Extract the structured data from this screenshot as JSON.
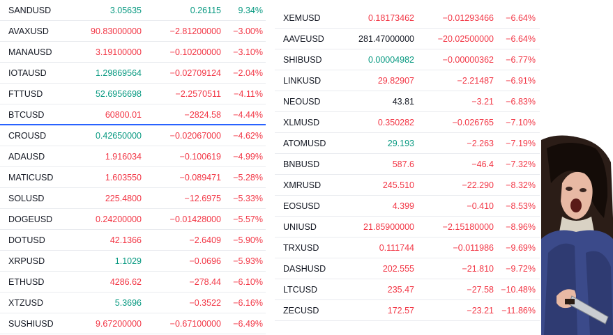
{
  "left_rows": [
    {
      "symbol": "SANDUSD",
      "last": "3.05635",
      "last_color": "green",
      "change": "0.26115",
      "change_color": "green",
      "pct": "9.34%",
      "pct_color": "green"
    },
    {
      "symbol": "AVAXUSD",
      "last": "90.83000000",
      "last_color": "red",
      "change": "−2.81200000",
      "change_color": "red",
      "pct": "−3.00%",
      "pct_color": "red"
    },
    {
      "symbol": "MANAUSD",
      "last": "3.19100000",
      "last_color": "red",
      "change": "−0.10200000",
      "change_color": "red",
      "pct": "−3.10%",
      "pct_color": "red"
    },
    {
      "symbol": "IOTAUSD",
      "last": "1.29869564",
      "last_color": "green",
      "change": "−0.02709124",
      "change_color": "red",
      "pct": "−2.04%",
      "pct_color": "red"
    },
    {
      "symbol": "FTTUSD",
      "last": "52.6956698",
      "last_color": "green",
      "change": "−2.2570511",
      "change_color": "red",
      "pct": "−4.11%",
      "pct_color": "red"
    },
    {
      "symbol": "BTCUSD",
      "last": "60800.01",
      "last_color": "red",
      "change": "−2824.58",
      "change_color": "red",
      "pct": "−4.44%",
      "pct_color": "red",
      "selected": true
    },
    {
      "symbol": "CROUSD",
      "last": "0.42650000",
      "last_color": "green",
      "change": "−0.02067000",
      "change_color": "red",
      "pct": "−4.62%",
      "pct_color": "red"
    },
    {
      "symbol": "ADAUSD",
      "last": "1.916034",
      "last_color": "red",
      "change": "−0.100619",
      "change_color": "red",
      "pct": "−4.99%",
      "pct_color": "red"
    },
    {
      "symbol": "MATICUSD",
      "last": "1.603550",
      "last_color": "red",
      "change": "−0.089471",
      "change_color": "red",
      "pct": "−5.28%",
      "pct_color": "red"
    },
    {
      "symbol": "SOLUSD",
      "last": "225.4800",
      "last_color": "red",
      "change": "−12.6975",
      "change_color": "red",
      "pct": "−5.33%",
      "pct_color": "red"
    },
    {
      "symbol": "DOGEUSD",
      "last": "0.24200000",
      "last_color": "red",
      "change": "−0.01428000",
      "change_color": "red",
      "pct": "−5.57%",
      "pct_color": "red"
    },
    {
      "symbol": "DOTUSD",
      "last": "42.1366",
      "last_color": "red",
      "change": "−2.6409",
      "change_color": "red",
      "pct": "−5.90%",
      "pct_color": "red"
    },
    {
      "symbol": "XRPUSD",
      "last": "1.1029",
      "last_color": "green",
      "change": "−0.0696",
      "change_color": "red",
      "pct": "−5.93%",
      "pct_color": "red"
    },
    {
      "symbol": "ETHUSD",
      "last": "4286.62",
      "last_color": "red",
      "change": "−278.44",
      "change_color": "red",
      "pct": "−6.10%",
      "pct_color": "red"
    },
    {
      "symbol": "XTZUSD",
      "last": "5.3696",
      "last_color": "green",
      "change": "−0.3522",
      "change_color": "red",
      "pct": "−6.16%",
      "pct_color": "red"
    },
    {
      "symbol": "SUSHIUSD",
      "last": "9.67200000",
      "last_color": "red",
      "change": "−0.67100000",
      "change_color": "red",
      "pct": "−6.49%",
      "pct_color": "red"
    }
  ],
  "right_rows": [
    {
      "symbol": "XEMUSD",
      "last": "0.18173462",
      "last_color": "red",
      "change": "−0.01293466",
      "change_color": "red",
      "pct": "−6.64%",
      "pct_color": "red"
    },
    {
      "symbol": "AAVEUSD",
      "last": "281.47000000",
      "last_color": "dark",
      "change": "−20.02500000",
      "change_color": "red",
      "pct": "−6.64%",
      "pct_color": "red"
    },
    {
      "symbol": "SHIBUSD",
      "last": "0.00004982",
      "last_color": "green",
      "change": "−0.00000362",
      "change_color": "red",
      "pct": "−6.77%",
      "pct_color": "red"
    },
    {
      "symbol": "LINKUSD",
      "last": "29.82907",
      "last_color": "red",
      "change": "−2.21487",
      "change_color": "red",
      "pct": "−6.91%",
      "pct_color": "red"
    },
    {
      "symbol": "NEOUSD",
      "last": "43.81",
      "last_color": "dark",
      "change": "−3.21",
      "change_color": "red",
      "pct": "−6.83%",
      "pct_color": "red"
    },
    {
      "symbol": "XLMUSD",
      "last": "0.350282",
      "last_color": "red",
      "change": "−0.026765",
      "change_color": "red",
      "pct": "−7.10%",
      "pct_color": "red"
    },
    {
      "symbol": "ATOMUSD",
      "last": "29.193",
      "last_color": "green",
      "change": "−2.263",
      "change_color": "red",
      "pct": "−7.19%",
      "pct_color": "red"
    },
    {
      "symbol": "BNBUSD",
      "last": "587.6",
      "last_color": "red",
      "change": "−46.4",
      "change_color": "red",
      "pct": "−7.32%",
      "pct_color": "red"
    },
    {
      "symbol": "XMRUSD",
      "last": "245.510",
      "last_color": "red",
      "change": "−22.290",
      "change_color": "red",
      "pct": "−8.32%",
      "pct_color": "red"
    },
    {
      "symbol": "EOSUSD",
      "last": "4.399",
      "last_color": "red",
      "change": "−0.410",
      "change_color": "red",
      "pct": "−8.53%",
      "pct_color": "red"
    },
    {
      "symbol": "UNIUSD",
      "last": "21.85900000",
      "last_color": "red",
      "change": "−2.15180000",
      "change_color": "red",
      "pct": "−8.96%",
      "pct_color": "red"
    },
    {
      "symbol": "TRXUSD",
      "last": "0.111744",
      "last_color": "red",
      "change": "−0.011986",
      "change_color": "red",
      "pct": "−9.69%",
      "pct_color": "red"
    },
    {
      "symbol": "DASHUSD",
      "last": "202.555",
      "last_color": "red",
      "change": "−21.810",
      "change_color": "red",
      "pct": "−9.72%",
      "pct_color": "red"
    },
    {
      "symbol": "LTCUSD",
      "last": "235.47",
      "last_color": "red",
      "change": "−27.58",
      "change_color": "red",
      "pct": "−10.48%",
      "pct_color": "red"
    },
    {
      "symbol": "ZECUSD",
      "last": "172.57",
      "last_color": "red",
      "change": "−23.21",
      "change_color": "red",
      "pct": "−11.86%",
      "pct_color": "red"
    }
  ],
  "colors": {
    "red": "#f23645",
    "green": "#089981",
    "dark": "#131722",
    "selected_border": "#2962ff"
  },
  "image": {
    "icon": "screaming-woman-with-knife-meme"
  }
}
